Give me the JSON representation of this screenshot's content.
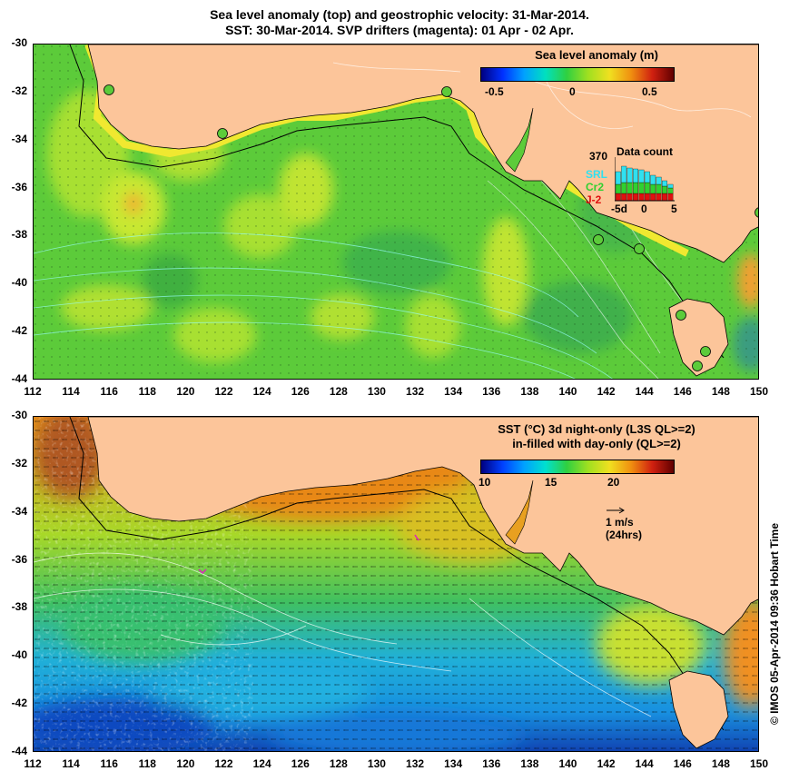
{
  "title": {
    "line1": "Sea level anomaly (top) and geostrophic velocity: 31-Mar-2014.",
    "line2": "SST: 30-Mar-2014. SVP drifters (magenta): 01 Apr - 02 Apr."
  },
  "map": {
    "lat_range": [
      -44,
      -30
    ],
    "lon_range": [
      112,
      150
    ],
    "lat_ticks": [
      "-30",
      "-32",
      "-34",
      "-36",
      "-38",
      "-40",
      "-42",
      "-44"
    ],
    "lon_ticks": [
      "112",
      "114",
      "116",
      "118",
      "120",
      "122",
      "124",
      "126",
      "128",
      "130",
      "132",
      "134",
      "136",
      "138",
      "140",
      "142",
      "144",
      "146",
      "148",
      "150"
    ],
    "land_color": "#fcc59a",
    "ocean_color": "#5fcf3c"
  },
  "top_panel": {
    "colorbar_title": "Sea level anomaly (m)",
    "colorbar_ticks": [
      "-0.5",
      "0",
      "0.5"
    ],
    "colorbar_range": [
      -0.6,
      0.6
    ],
    "data_count": {
      "max_label": "370",
      "title": "Data count",
      "series": [
        {
          "name": "SRL",
          "color": "#30e0f0"
        },
        {
          "name": "Cr2",
          "color": "#30d030"
        },
        {
          "name": "J-2",
          "color": "#e01010"
        }
      ],
      "x_ticks": [
        "-5d",
        "0",
        "5"
      ]
    }
  },
  "bottom_panel": {
    "colorbar_title_line1": "SST (°C)  3d night-only (L3S QL>=2)",
    "colorbar_title_line2": "in-filled with day-only (QL>=2)",
    "colorbar_ticks": [
      "10",
      "15",
      "20"
    ],
    "colorbar_range": [
      9.5,
      24.5
    ],
    "velocity_scale": {
      "label1": "1 m/s",
      "label2": "(24hrs)"
    }
  },
  "copyright": "© IMOS 05-Apr-2014 09:36 Hobart Time"
}
